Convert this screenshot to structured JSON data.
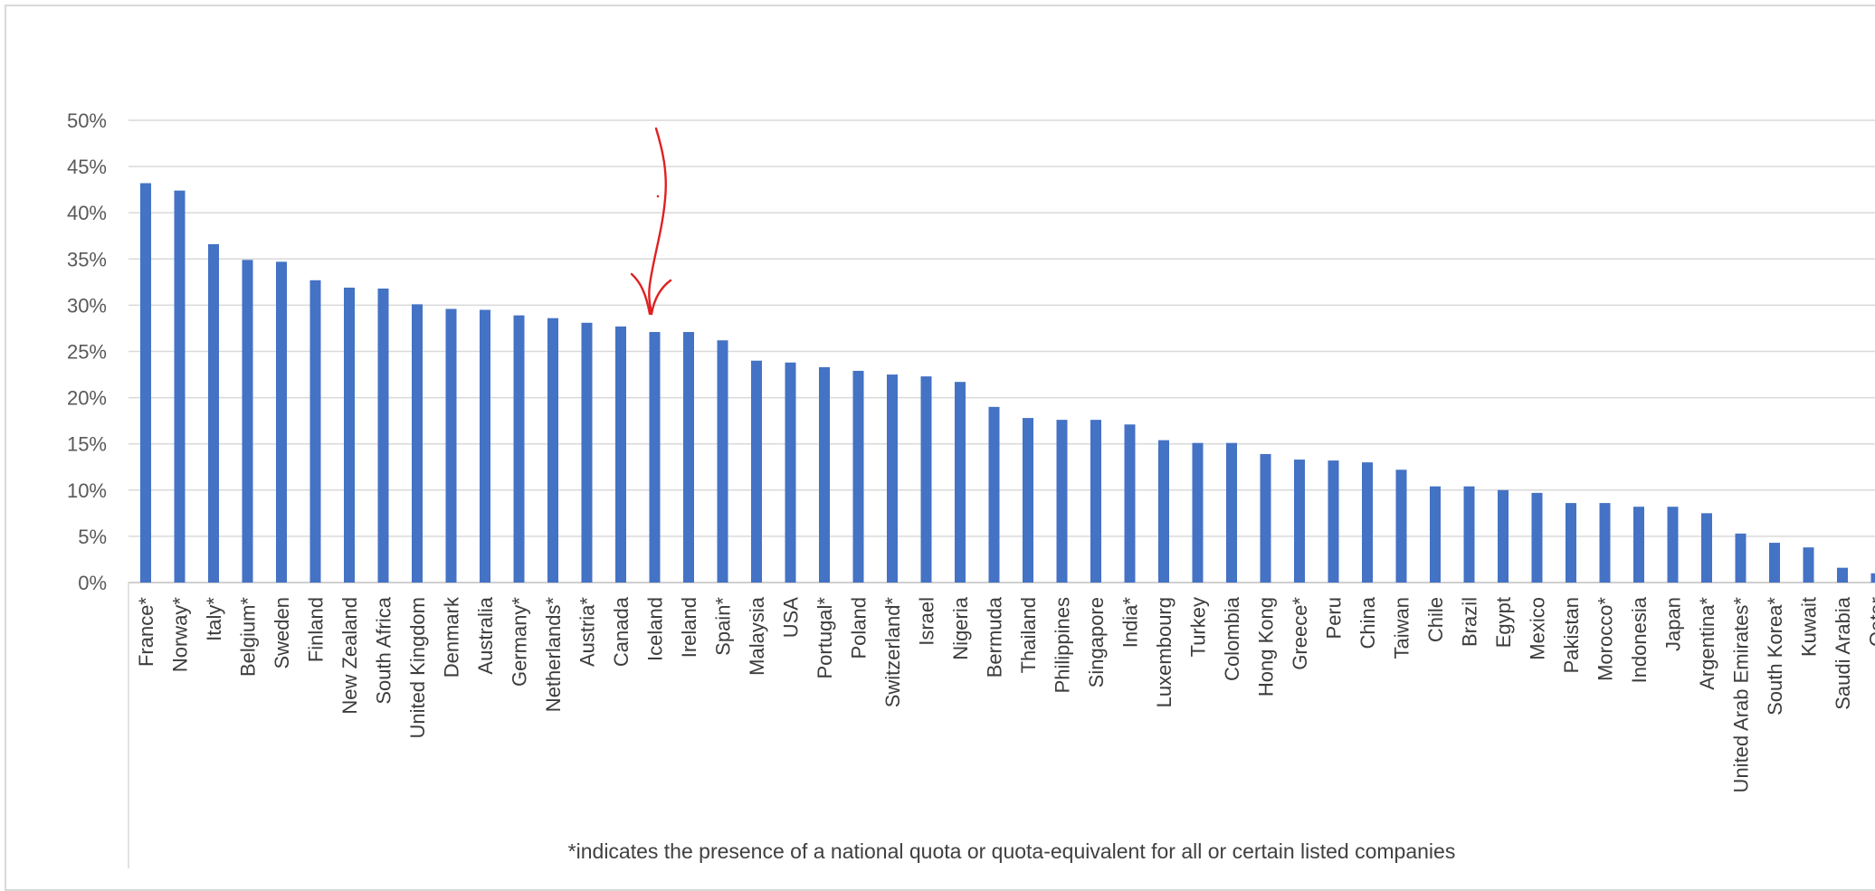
{
  "chart_data": {
    "type": "bar",
    "title": "",
    "xlabel": "",
    "ylabel": "",
    "ylim": [
      0,
      0.5
    ],
    "y_ticks": [
      "0%",
      "5%",
      "10%",
      "15%",
      "20%",
      "25%",
      "30%",
      "35%",
      "40%",
      "45%",
      "50%"
    ],
    "grid": true,
    "legend": "none",
    "bar_color": "#4472c4",
    "categories": [
      "France*",
      "Norway*",
      "Italy*",
      "Belgium*",
      "Sweden",
      "Finland",
      "New Zealand",
      "South Africa",
      "United Kingdom",
      "Denmark",
      "Australia",
      "Germany*",
      "Netherlands*",
      "Austria*",
      "Canada",
      "Iceland",
      "Ireland",
      "Spain*",
      "Malaysia",
      "USA",
      "Portugal*",
      "Poland",
      "Switzerland*",
      "Israel",
      "Nigeria",
      "Bermuda",
      "Thailand",
      "Philippines",
      "Singapore",
      "India*",
      "Luxembourg",
      "Turkey",
      "Colombia",
      "Hong Kong",
      "Greece*",
      "Peru",
      "China",
      "Taiwan",
      "Chile",
      "Brazil",
      "Egypt",
      "Mexico",
      "Pakistan",
      "Morocco*",
      "Indonesia",
      "Japan",
      "Argentina*",
      "United Arab Emirates*",
      "South Korea*",
      "Kuwait",
      "Saudi Arabia",
      "Qatar"
    ],
    "values": [
      0.432,
      0.424,
      0.366,
      0.349,
      0.347,
      0.327,
      0.319,
      0.318,
      0.301,
      0.296,
      0.295,
      0.289,
      0.286,
      0.281,
      0.277,
      0.271,
      0.271,
      0.262,
      0.24,
      0.238,
      0.233,
      0.229,
      0.225,
      0.223,
      0.217,
      0.19,
      0.178,
      0.176,
      0.176,
      0.171,
      0.154,
      0.151,
      0.151,
      0.139,
      0.133,
      0.132,
      0.13,
      0.122,
      0.104,
      0.104,
      0.1,
      0.097,
      0.086,
      0.086,
      0.082,
      0.082,
      0.075,
      0.053,
      0.043,
      0.038,
      0.016,
      0.01
    ],
    "footnote": "*indicates the presence of a national quota or quota-equivalent for all or certain listed companies",
    "annotation": {
      "type": "hand-drawn arrow",
      "points_to": "Iceland",
      "color": "#e02020"
    }
  }
}
